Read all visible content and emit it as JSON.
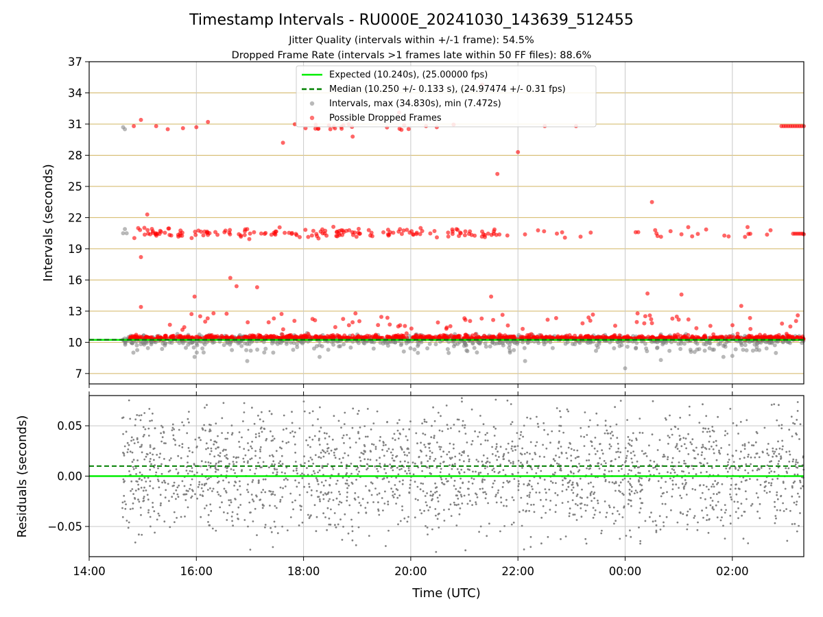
{
  "title": "Timestamp Intervals - RU000E_20241030_143639_512455",
  "subtitle_1": "Jitter Quality (intervals within +/-1 frame): 54.5%",
  "subtitle_2": "Dropped Frame Rate (intervals >1 frames late within 50 FF files): 88.6%",
  "colors": {
    "expected": "#00ee00",
    "median": "#008000",
    "intervals": "#808080",
    "dropped": "#ff0000",
    "hgrid_top": "#d2b460",
    "grid": "#c8c8c8"
  },
  "chart_data": [
    {
      "type": "scatter",
      "panel": "intervals",
      "ylabel": "Intervals (seconds)",
      "xlabel": "",
      "xlim": [
        "2024-10-30T14:00",
        "2024-10-31T03:20"
      ],
      "ylim": [
        6.0,
        37.0
      ],
      "yticks": [
        7,
        10,
        13,
        16,
        19,
        22,
        25,
        28,
        31,
        34,
        37
      ],
      "xticks": [
        "14:00",
        "16:00",
        "18:00",
        "20:00",
        "22:00",
        "00:00",
        "02:00"
      ],
      "grid": true,
      "legend_position": "top-center",
      "legend": [
        "Expected (10.240s), (25.00000 fps)",
        "Median (10.250 +/- 0.133 s), (24.97474 +/- 0.31 fps)",
        "Intervals, max (34.830s), min (7.472s)",
        "Possible Dropped Frames"
      ],
      "expected_interval": 10.24,
      "median_interval": 10.25,
      "median_std": 0.133,
      "max_interval": 34.83,
      "min_interval": 7.472,
      "data_start": "2024-10-30T14:37",
      "data_end": "2024-10-31T03:20",
      "series": [
        {
          "name": "Intervals, max (34.830s), min (7.472s)",
          "note_points": [
            {
              "x": "2024-10-30T14:38",
              "y": 30.7
            },
            {
              "x": "2024-10-30T14:40",
              "y": 30.5
            },
            {
              "x": "2024-10-30T14:38",
              "y": 20.5
            },
            {
              "x": "2024-10-30T14:40",
              "y": 20.9
            },
            {
              "x": "2024-10-30T14:42",
              "y": 20.5
            },
            {
              "x": "2024-10-30T15:58",
              "y": 8.6
            },
            {
              "x": "2024-10-30T16:57",
              "y": 8.2
            },
            {
              "x": "2024-10-30T18:18",
              "y": 8.6
            },
            {
              "x": "2024-10-30T22:08",
              "y": 8.2
            },
            {
              "x": "2024-10-31T00:00",
              "y": 7.5
            },
            {
              "x": "2024-10-31T00:40",
              "y": 8.3
            },
            {
              "x": "2024-10-31T01:50",
              "y": 8.6
            },
            {
              "x": "2024-10-31T02:00",
              "y": 8.7
            }
          ]
        },
        {
          "name": "Possible Dropped Frames",
          "note_points": [
            {
              "x": "2024-10-30T14:50",
              "y": 30.8
            },
            {
              "x": "2024-10-30T14:58",
              "y": 31.4
            },
            {
              "x": "2024-10-30T15:15",
              "y": 30.8
            },
            {
              "x": "2024-10-30T15:28",
              "y": 30.5
            },
            {
              "x": "2024-10-30T15:45",
              "y": 30.6
            },
            {
              "x": "2024-10-30T16:00",
              "y": 30.7
            },
            {
              "x": "2024-10-30T16:13",
              "y": 31.2
            },
            {
              "x": "2024-10-30T17:37",
              "y": 29.2
            },
            {
              "x": "2024-10-30T18:30",
              "y": 30.5
            },
            {
              "x": "2024-10-30T18:55",
              "y": 29.8
            },
            {
              "x": "2024-10-30T19:47",
              "y": 32.1
            },
            {
              "x": "2024-10-30T21:20",
              "y": 34.8
            },
            {
              "x": "2024-10-30T21:37",
              "y": 26.2
            },
            {
              "x": "2024-10-30T22:00",
              "y": 28.3
            },
            {
              "x": "2024-10-30T22:30",
              "y": 30.8
            },
            {
              "x": "2024-10-30T23:05",
              "y": 30.8
            },
            {
              "x": "2024-10-31T00:30",
              "y": 23.5
            },
            {
              "x": "2024-10-30T15:05",
              "y": 22.3
            },
            {
              "x": "2024-10-30T14:58",
              "y": 18.2
            },
            {
              "x": "2024-10-30T16:38",
              "y": 16.2
            },
            {
              "x": "2024-10-30T16:45",
              "y": 15.4
            },
            {
              "x": "2024-10-30T17:08",
              "y": 15.3
            },
            {
              "x": "2024-10-30T15:58",
              "y": 14.4
            },
            {
              "x": "2024-10-30T21:30",
              "y": 14.4
            },
            {
              "x": "2024-10-31T00:25",
              "y": 14.7
            },
            {
              "x": "2024-10-31T01:03",
              "y": 14.6
            },
            {
              "x": "2024-10-31T02:10",
              "y": 13.5
            },
            {
              "x": "2024-10-30T14:58",
              "y": 13.4
            },
            {
              "x": "2024-10-31T03:20",
              "y": 30.8
            },
            {
              "x": "2024-10-31T03:20",
              "y": 20.4
            }
          ]
        },
        {
          "name": "Expected (10.240s), (25.00000 fps)",
          "values": [
            10.24
          ]
        },
        {
          "name": "Median (10.250 +/- 0.133 s), (24.97474 +/- 0.31 fps)",
          "values": [
            10.25
          ]
        }
      ]
    },
    {
      "type": "scatter",
      "panel": "residuals",
      "ylabel": "Residuals (seconds)",
      "xlabel": "Time (UTC)",
      "xlim": [
        "2024-10-30T14:00",
        "2024-10-31T03:20"
      ],
      "ylim": [
        -0.08,
        0.08
      ],
      "yticks": [
        "−0.05",
        "0.00",
        "0.05"
      ],
      "ytick_values": [
        -0.05,
        0.0,
        0.05
      ],
      "xticks": [
        "14:00",
        "16:00",
        "18:00",
        "20:00",
        "22:00",
        "00:00",
        "02:00"
      ],
      "grid": true,
      "zero_line": 0.0,
      "median_residual": 0.01,
      "residual_spread": "approx. uniform within −0.08 to 0.08 s"
    }
  ]
}
